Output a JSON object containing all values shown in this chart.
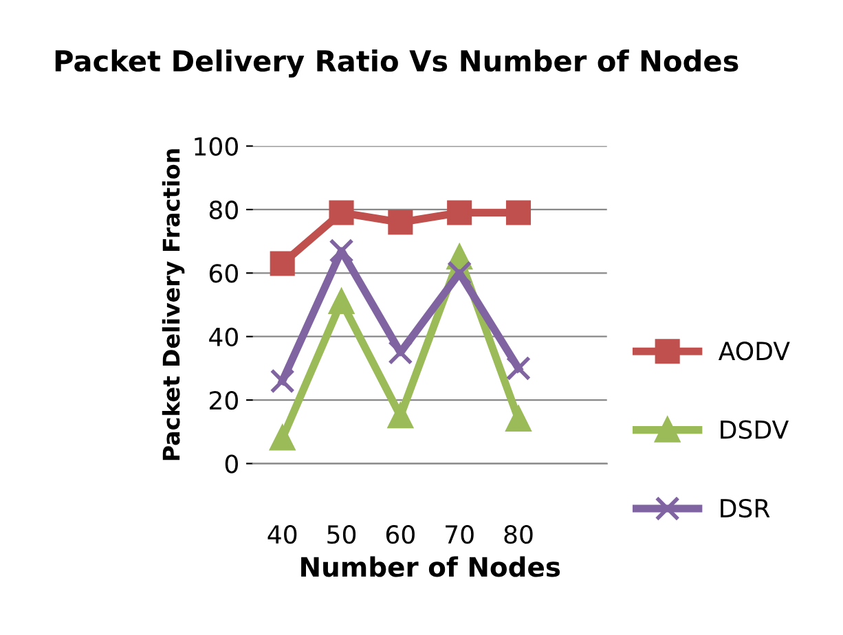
{
  "chart_data": {
    "type": "line",
    "title": "Packet Delivery Ratio Vs Number of Nodes",
    "xlabel": "Number of Nodes",
    "ylabel": "Packet Delivery Fraction",
    "categories": [
      "40",
      "50",
      "60",
      "70",
      "80",
      null
    ],
    "series": [
      {
        "name": "AODV",
        "color": "#c0504d",
        "marker": "square",
        "values": [
          63,
          79,
          76,
          79,
          79,
          null
        ]
      },
      {
        "name": "DSDV",
        "color": "#9bbb59",
        "marker": "triangle",
        "values": [
          8,
          51,
          15,
          65,
          14,
          null
        ]
      },
      {
        "name": "DSR",
        "color": "#8064a2",
        "marker": "cross",
        "values": [
          26,
          67,
          35,
          60,
          30,
          null
        ]
      }
    ],
    "ylim": [
      0,
      100
    ],
    "yticks": [
      0,
      20,
      40,
      60,
      80,
      100
    ],
    "grid": "y",
    "legend": "right"
  }
}
